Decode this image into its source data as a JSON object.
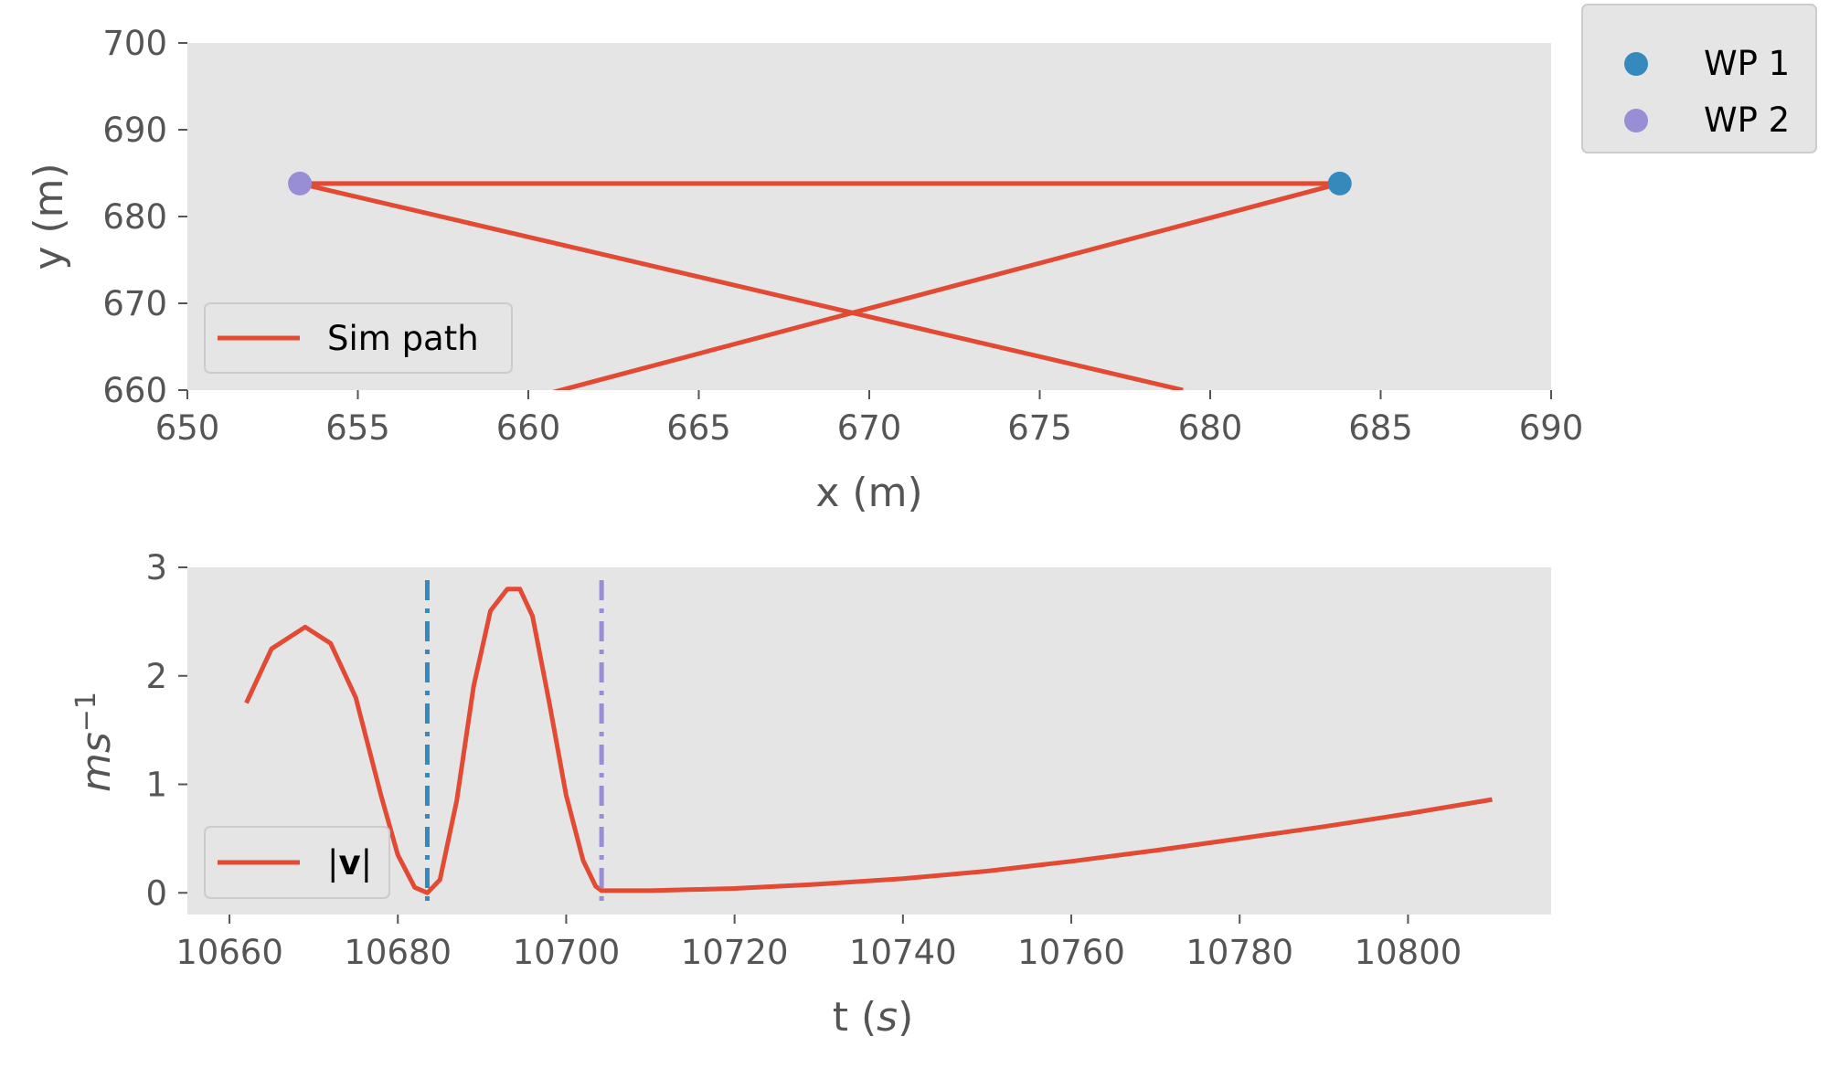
{
  "colors": {
    "path": "#E24A33",
    "wp1": "#348ABD",
    "wp2": "#988ED5",
    "axes_bg": "#E5E5E5"
  },
  "chart_data": [
    {
      "type": "line",
      "xlabel": "x (m)",
      "ylabel": "y (m)",
      "xlim": [
        650,
        690
      ],
      "ylim": [
        660,
        700
      ],
      "xticks": [
        "650",
        "655",
        "660",
        "665",
        "670",
        "675",
        "680",
        "685",
        "690"
      ],
      "yticks": [
        "660",
        "670",
        "680",
        "690",
        "700"
      ],
      "grid": false,
      "series": [
        {
          "name": "Sim path",
          "type": "line",
          "x": [
            660,
            683.8,
            653.3,
            679.2
          ],
          "y": [
            659,
            683.8,
            683.8,
            660
          ]
        },
        {
          "name": "WP 1",
          "type": "scatter",
          "x": [
            683.8
          ],
          "y": [
            683.8
          ]
        },
        {
          "name": "WP 2",
          "type": "scatter",
          "x": [
            653.3
          ],
          "y": [
            683.8
          ]
        }
      ],
      "legend": [
        {
          "label": "Sim path",
          "placement": "lower-left"
        },
        {
          "label": "WP 1",
          "placement": "outside-upper-right"
        },
        {
          "label": "WP 2",
          "placement": "outside-upper-right"
        }
      ]
    },
    {
      "type": "line",
      "xlabel_main": "t (",
      "xlabel_var": "s",
      "xlabel_end": ")",
      "ylabel_main": "ms",
      "ylabel_sup": "−1",
      "xlim": [
        10655,
        10817
      ],
      "ylim": [
        -0.2,
        3.0
      ],
      "xticks": [
        "10660",
        "10680",
        "10700",
        "10720",
        "10740",
        "10760",
        "10780",
        "10800"
      ],
      "yticks": [
        "0",
        "1",
        "2",
        "3"
      ],
      "grid": false,
      "series": [
        {
          "name": "|v|",
          "type": "line",
          "x": [
            10662,
            10665,
            10669,
            10672,
            10675,
            10678,
            10680,
            10682,
            10683.5,
            10685,
            10687,
            10689,
            10691,
            10693,
            10694.5,
            10696,
            10698,
            10700,
            10702,
            10703.5,
            10704.2,
            10710,
            10720,
            10730,
            10740,
            10750,
            10760,
            10770,
            10780,
            10790,
            10800,
            10810
          ],
          "y": [
            1.75,
            2.25,
            2.45,
            2.3,
            1.8,
            0.9,
            0.35,
            0.05,
            0.0,
            0.12,
            0.85,
            1.9,
            2.6,
            2.8,
            2.8,
            2.55,
            1.75,
            0.9,
            0.3,
            0.06,
            0.02,
            0.02,
            0.04,
            0.08,
            0.13,
            0.2,
            0.29,
            0.39,
            0.5,
            0.61,
            0.73,
            0.86
          ]
        }
      ],
      "vlines": [
        {
          "x": 10683.5,
          "color": "#348ABD",
          "style": "dash-dot"
        },
        {
          "x": 10704.2,
          "color": "#988ED5",
          "style": "dash-dot"
        }
      ],
      "legend": [
        {
          "label_prefix": "|",
          "label_main": "v",
          "label_suffix": "|",
          "placement": "lower-left"
        }
      ]
    }
  ]
}
